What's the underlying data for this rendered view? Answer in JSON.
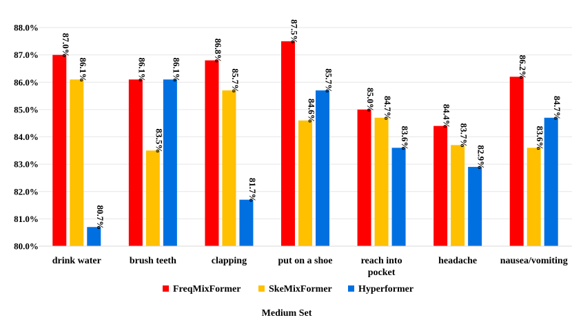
{
  "chart_data": {
    "type": "bar",
    "title": "Medium Set",
    "xlabel": "Medium Set",
    "ylabel": "",
    "ylim": [
      80.0,
      88.0
    ],
    "yticks": [
      "80.0%",
      "81.0%",
      "82.0%",
      "83.0%",
      "84.0%",
      "85.0%",
      "86.0%",
      "87.0%",
      "88.0%"
    ],
    "grid": true,
    "legend_position": "bottom",
    "categories": [
      [
        "drink water"
      ],
      [
        "brush teeth"
      ],
      [
        "clapping"
      ],
      [
        "put on a shoe"
      ],
      [
        "reach into",
        "pocket"
      ],
      [
        "headache"
      ],
      [
        "nausea/vomiting"
      ]
    ],
    "series": [
      {
        "name": "FreqMixFormer",
        "color": "#ff0000",
        "values": [
          87.0,
          86.1,
          86.8,
          87.5,
          85.0,
          84.4,
          86.2
        ],
        "labels": [
          "87.0%",
          "86.1%",
          "86.8%",
          "87.5%",
          "85.0%",
          "84.4%",
          "86.2%"
        ]
      },
      {
        "name": "SkeMixFormer",
        "color": "#ffc000",
        "values": [
          86.1,
          83.5,
          85.7,
          84.6,
          84.7,
          83.7,
          83.6
        ],
        "labels": [
          "86.1%",
          "83.5%",
          "85.7%",
          "84.6%",
          "84.7%",
          "83.7%",
          "83.6%"
        ]
      },
      {
        "name": "Hyperformer",
        "color": "#0070e0",
        "values": [
          80.7,
          86.1,
          81.7,
          85.7,
          83.6,
          82.9,
          84.7
        ],
        "labels": [
          "80.7%",
          "86.1%",
          "81.7%",
          "85.7%",
          "83.6%",
          "82.9%",
          "84.7%"
        ]
      }
    ]
  }
}
